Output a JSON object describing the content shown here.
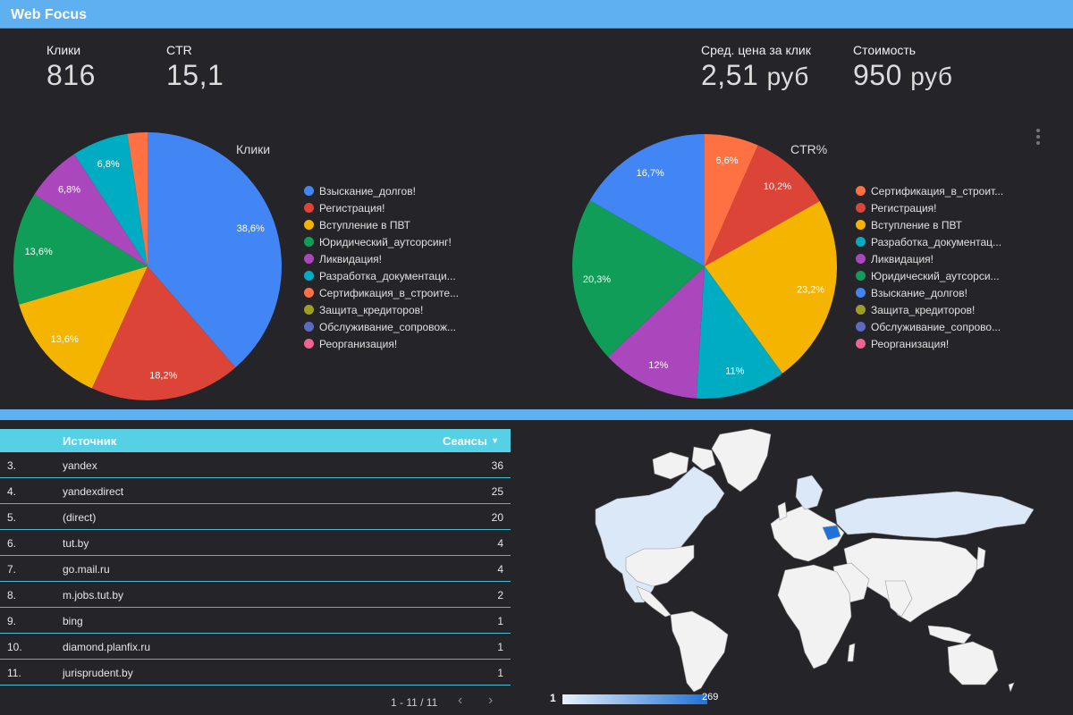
{
  "header": {
    "title": "Web Focus"
  },
  "kpis": {
    "clicks": {
      "label": "Клики",
      "value": "816"
    },
    "ctr": {
      "label": "CTR",
      "value": "15,1"
    },
    "cpc": {
      "label": "Сред. цена за клик",
      "value": "2,51",
      "unit": "руб"
    },
    "cost": {
      "label": "Стоимость",
      "value": "950",
      "unit": "руб"
    }
  },
  "chart_data": [
    {
      "type": "pie",
      "title": "Клики",
      "categories": [
        "Взыскание_долгов!",
        "Регистрация!",
        "Вступление в ПВТ",
        "Юридический_аутсорсинг!",
        "Ликвидация!",
        "Разработка_документаци...",
        "Сертификация_в_строите...",
        "Защита_кредиторов!",
        "Обслуживание_сопровож...",
        "Реорганизация!"
      ],
      "values": [
        38.6,
        18.2,
        13.6,
        13.6,
        6.8,
        6.8,
        2.4,
        0,
        0,
        0
      ],
      "labels": [
        "38,6%",
        "18,2%",
        "13,6%",
        "13,6%",
        "6,8%",
        "6,8%",
        "",
        "",
        "",
        ""
      ],
      "colors": [
        "#4285f4",
        "#db4437",
        "#f4b400",
        "#0f9d58",
        "#ab47bc",
        "#00acc1",
        "#ff7043",
        "#9e9d24",
        "#5c6bc0",
        "#f06292"
      ]
    },
    {
      "type": "pie",
      "title": "CTR%",
      "categories": [
        "Сертификация_в_строит...",
        "Регистрация!",
        "Вступление в ПВТ",
        "Разработка_документац...",
        "Ликвидация!",
        "Юридический_аутсорси...",
        "Взыскание_долгов!",
        "Защита_кредиторов!",
        "Обслуживание_сопрово...",
        "Реорганизация!"
      ],
      "values": [
        6.6,
        10.2,
        23.2,
        11,
        12,
        20.3,
        16.7,
        0,
        0,
        0
      ],
      "labels": [
        "6,6%",
        "10,2%",
        "23,2%",
        "11%",
        "12%",
        "20,3%",
        "16,7%",
        "",
        "",
        ""
      ],
      "colors": [
        "#ff7043",
        "#db4437",
        "#f4b400",
        "#00acc1",
        "#ab47bc",
        "#0f9d58",
        "#4285f4",
        "#9e9d24",
        "#5c6bc0",
        "#f06292"
      ]
    }
  ],
  "table": {
    "col_source": "Источник",
    "col_sessions": "Сеансы",
    "sort_icon": "sort-desc-icon",
    "rows": [
      {
        "idx": "3.",
        "source": "yandex",
        "sessions": "36"
      },
      {
        "idx": "4.",
        "source": "yandexdirect",
        "sessions": "25"
      },
      {
        "idx": "5.",
        "source": "(direct)",
        "sessions": "20"
      },
      {
        "idx": "6.",
        "source": "tut.by",
        "sessions": "4"
      },
      {
        "idx": "7.",
        "source": "go.mail.ru",
        "sessions": "4"
      },
      {
        "idx": "8.",
        "source": "m.jobs.tut.by",
        "sessions": "2"
      },
      {
        "idx": "9.",
        "source": "bing",
        "sessions": "1"
      },
      {
        "idx": "10.",
        "source": "diamond.planfix.ru",
        "sessions": "1"
      },
      {
        "idx": "11.",
        "source": "jurisprudent.by",
        "sessions": "1"
      }
    ],
    "pager": "1 - 11 / 11"
  },
  "map": {
    "scale_min": "1",
    "scale_max": "269",
    "colors": {
      "low": "#e8f1fb",
      "high": "#1f72d8",
      "land": "#f2f2f2"
    }
  }
}
